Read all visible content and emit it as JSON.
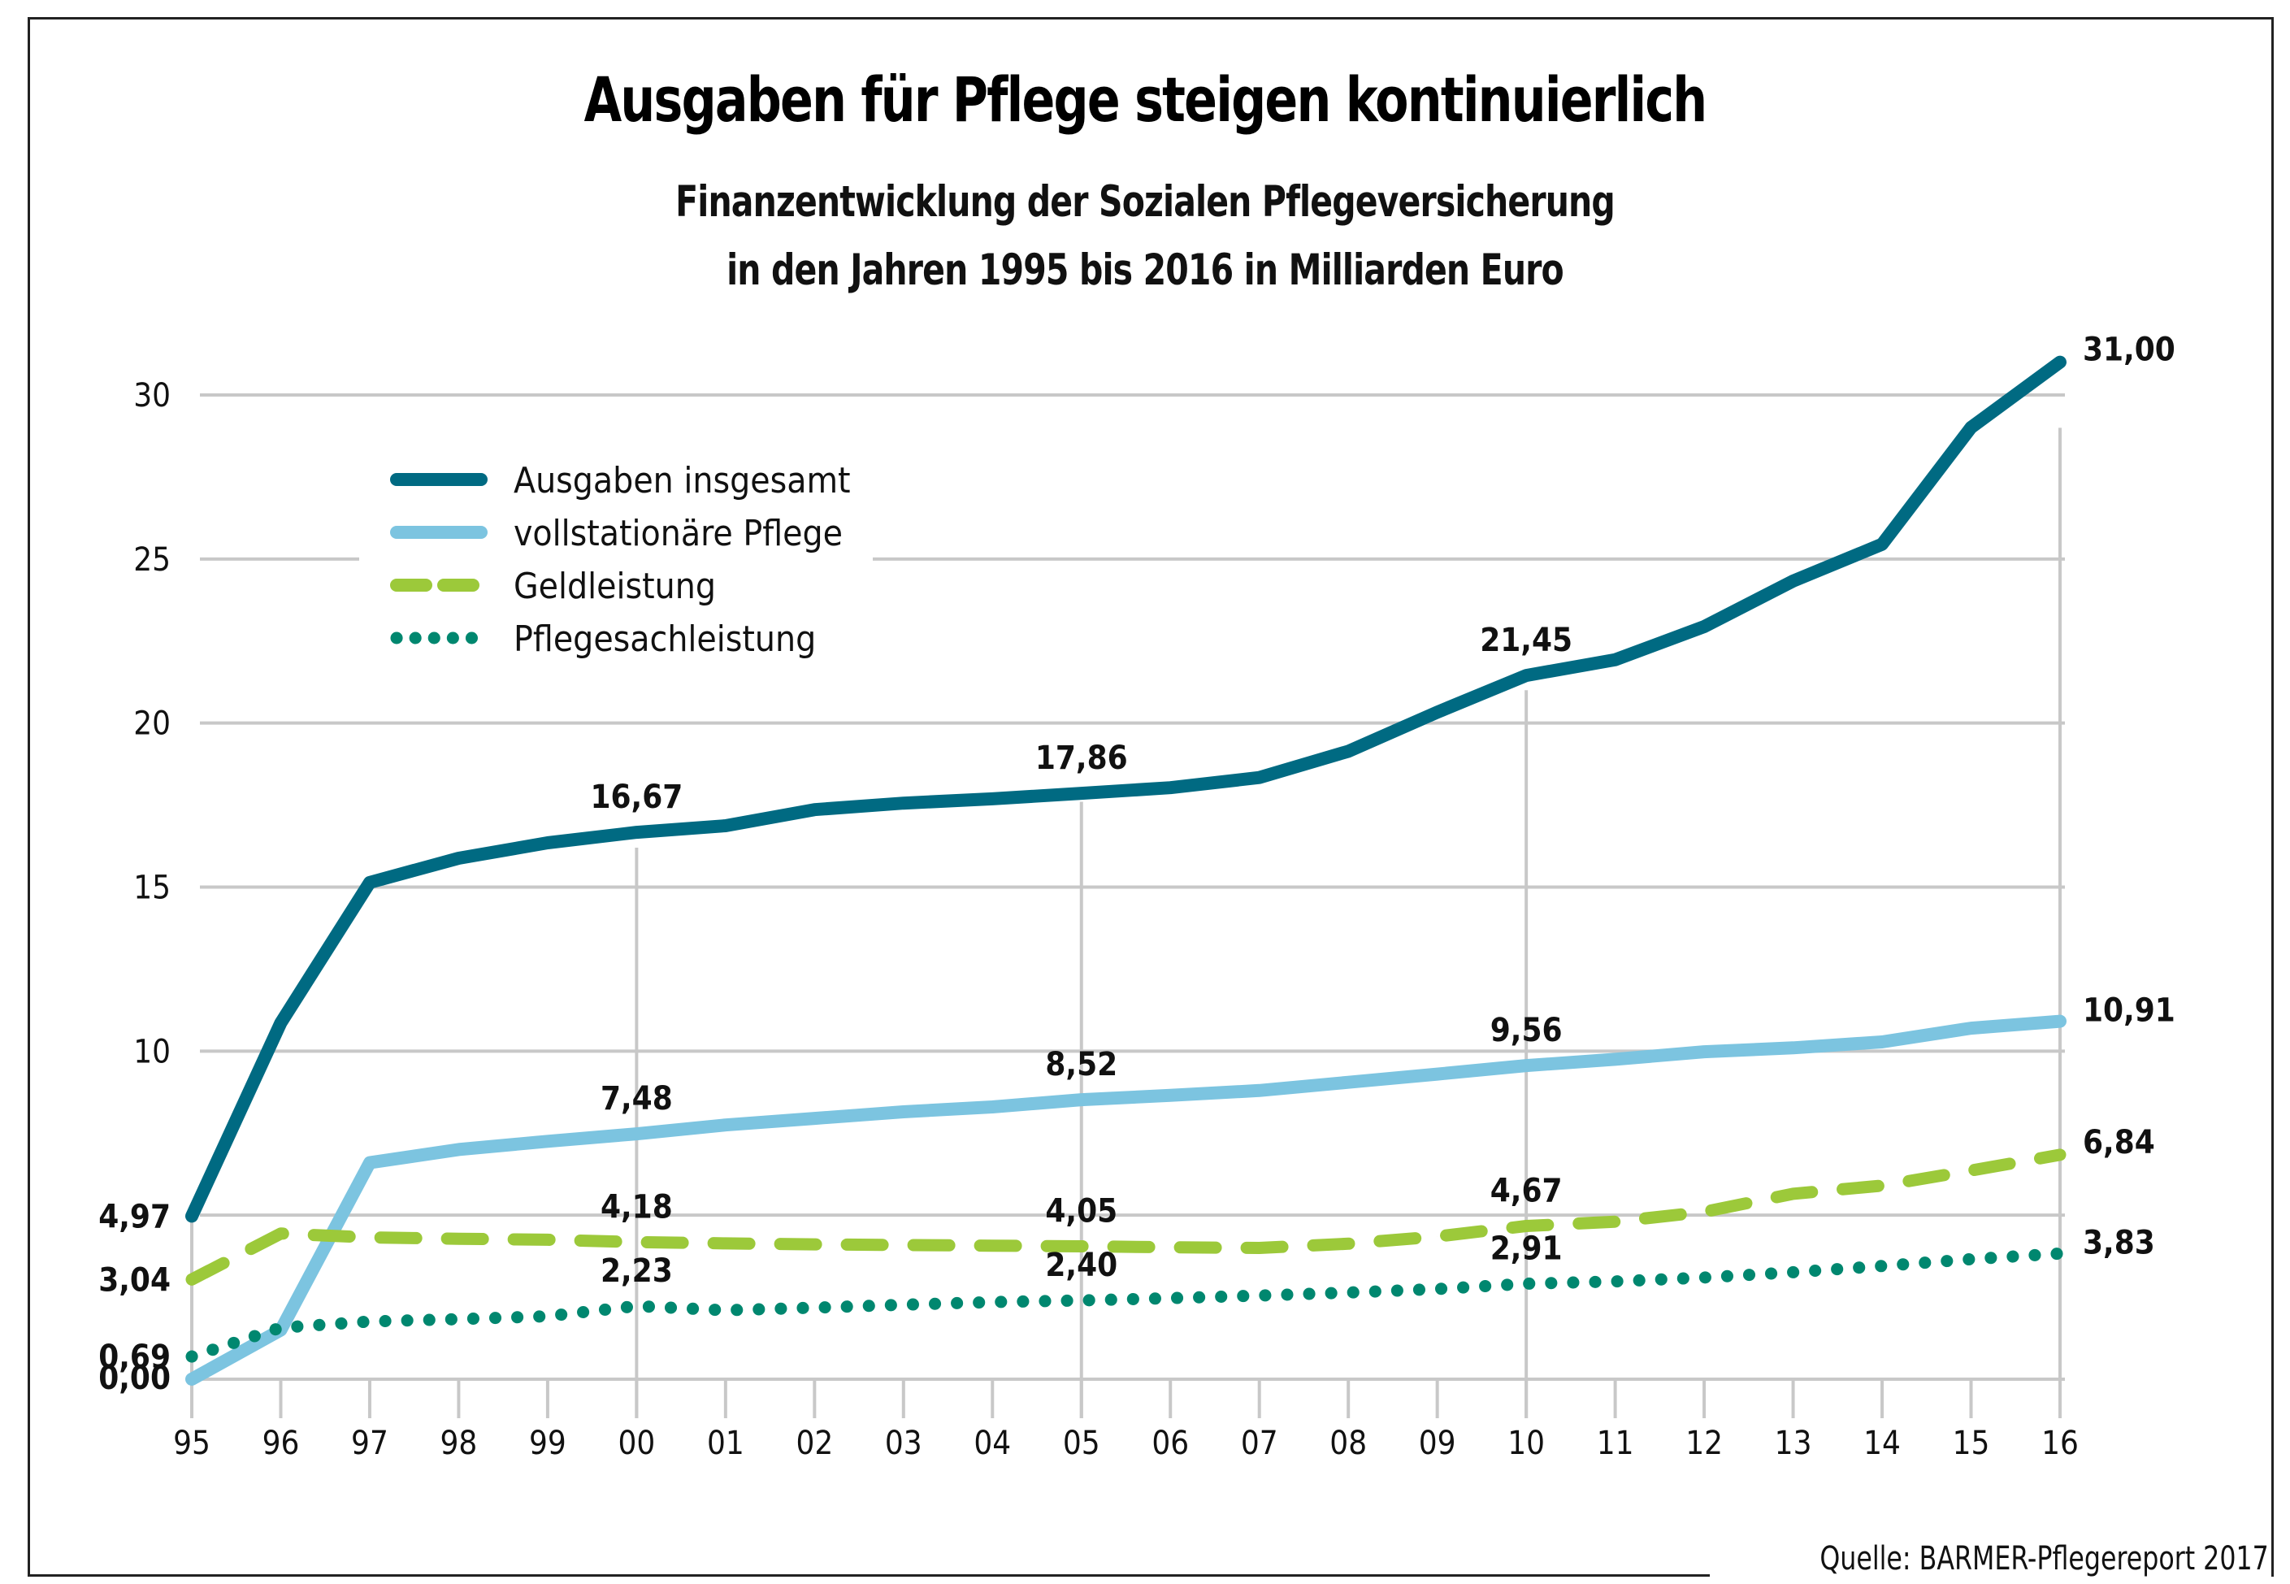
{
  "chart_data": {
    "type": "line",
    "title": "Ausgaben für Pflege steigen kontinuierlich",
    "subtitle": [
      "Finanzentwicklung der Sozialen Pflegeversicherung",
      "in den Jahren 1995 bis 2016 in Milliarden Euro"
    ],
    "source": "Quelle: BARMER-Pflegereport 2017",
    "xlabel": "",
    "ylabel": "",
    "x": [
      "95",
      "96",
      "97",
      "98",
      "99",
      "00",
      "01",
      "02",
      "03",
      "04",
      "05",
      "06",
      "07",
      "08",
      "09",
      "10",
      "11",
      "12",
      "13",
      "14",
      "15",
      "16"
    ],
    "ylim": [
      0,
      30
    ],
    "yticks": [
      10,
      15,
      20,
      25,
      30
    ],
    "ytick_labels": [
      "10",
      "15",
      "20",
      "25",
      "30"
    ],
    "grid": true,
    "legend_position": "top-left",
    "series": [
      {
        "name": "Ausgaben insgesamt",
        "style": "solid",
        "color": "#006a82",
        "values": [
          4.97,
          10.86,
          15.14,
          15.88,
          16.35,
          16.67,
          16.87,
          17.36,
          17.56,
          17.69,
          17.86,
          18.03,
          18.34,
          19.14,
          20.33,
          21.45,
          21.93,
          22.94,
          24.33,
          25.45,
          29.01,
          31.0
        ],
        "labels": [
          {
            "x": "95",
            "text": "4,97",
            "axis": true
          },
          {
            "x": "00",
            "text": "16,67"
          },
          {
            "x": "05",
            "text": "17,86"
          },
          {
            "x": "10",
            "text": "21,45"
          },
          {
            "x": "16",
            "text": "31,00",
            "end": true
          }
        ]
      },
      {
        "name": "vollstationäre Pflege",
        "style": "solid",
        "color": "#7cc4e0",
        "values": [
          0.0,
          1.5,
          6.6,
          7.0,
          7.25,
          7.48,
          7.75,
          7.95,
          8.15,
          8.3,
          8.52,
          8.65,
          8.8,
          9.05,
          9.3,
          9.56,
          9.75,
          9.98,
          10.1,
          10.28,
          10.7,
          10.91
        ],
        "labels": [
          {
            "x": "95",
            "text": "0,00",
            "axis": true
          },
          {
            "x": "00",
            "text": "7,48"
          },
          {
            "x": "05",
            "text": "8,52"
          },
          {
            "x": "10",
            "text": "9,56"
          },
          {
            "x": "16",
            "text": "10,91",
            "end": true
          }
        ]
      },
      {
        "name": "Geldleistung",
        "style": "dashed",
        "color": "#9cc93a",
        "values": [
          3.04,
          4.44,
          4.32,
          4.28,
          4.25,
          4.18,
          4.14,
          4.11,
          4.09,
          4.07,
          4.05,
          4.02,
          4.0,
          4.13,
          4.35,
          4.67,
          4.8,
          5.1,
          5.65,
          5.9,
          6.36,
          6.84
        ],
        "labels": [
          {
            "x": "95",
            "text": "3,04",
            "axis": true
          },
          {
            "x": "00",
            "text": "4,18"
          },
          {
            "x": "05",
            "text": "4,05"
          },
          {
            "x": "10",
            "text": "4,67"
          },
          {
            "x": "16",
            "text": "6,84",
            "end": true
          }
        ]
      },
      {
        "name": "Pflegesachleistung",
        "style": "dotted",
        "color": "#00876f",
        "values": [
          0.69,
          1.57,
          1.76,
          1.83,
          1.92,
          2.23,
          2.1,
          2.18,
          2.27,
          2.35,
          2.4,
          2.47,
          2.55,
          2.64,
          2.75,
          2.91,
          2.98,
          3.1,
          3.26,
          3.45,
          3.66,
          3.83
        ],
        "labels": [
          {
            "x": "95",
            "text": "0,69",
            "axis": true
          },
          {
            "x": "00",
            "text": "2,23"
          },
          {
            "x": "05",
            "text": "2,40"
          },
          {
            "x": "10",
            "text": "2,91"
          },
          {
            "x": "16",
            "text": "3,83",
            "end": true
          }
        ]
      }
    ]
  }
}
